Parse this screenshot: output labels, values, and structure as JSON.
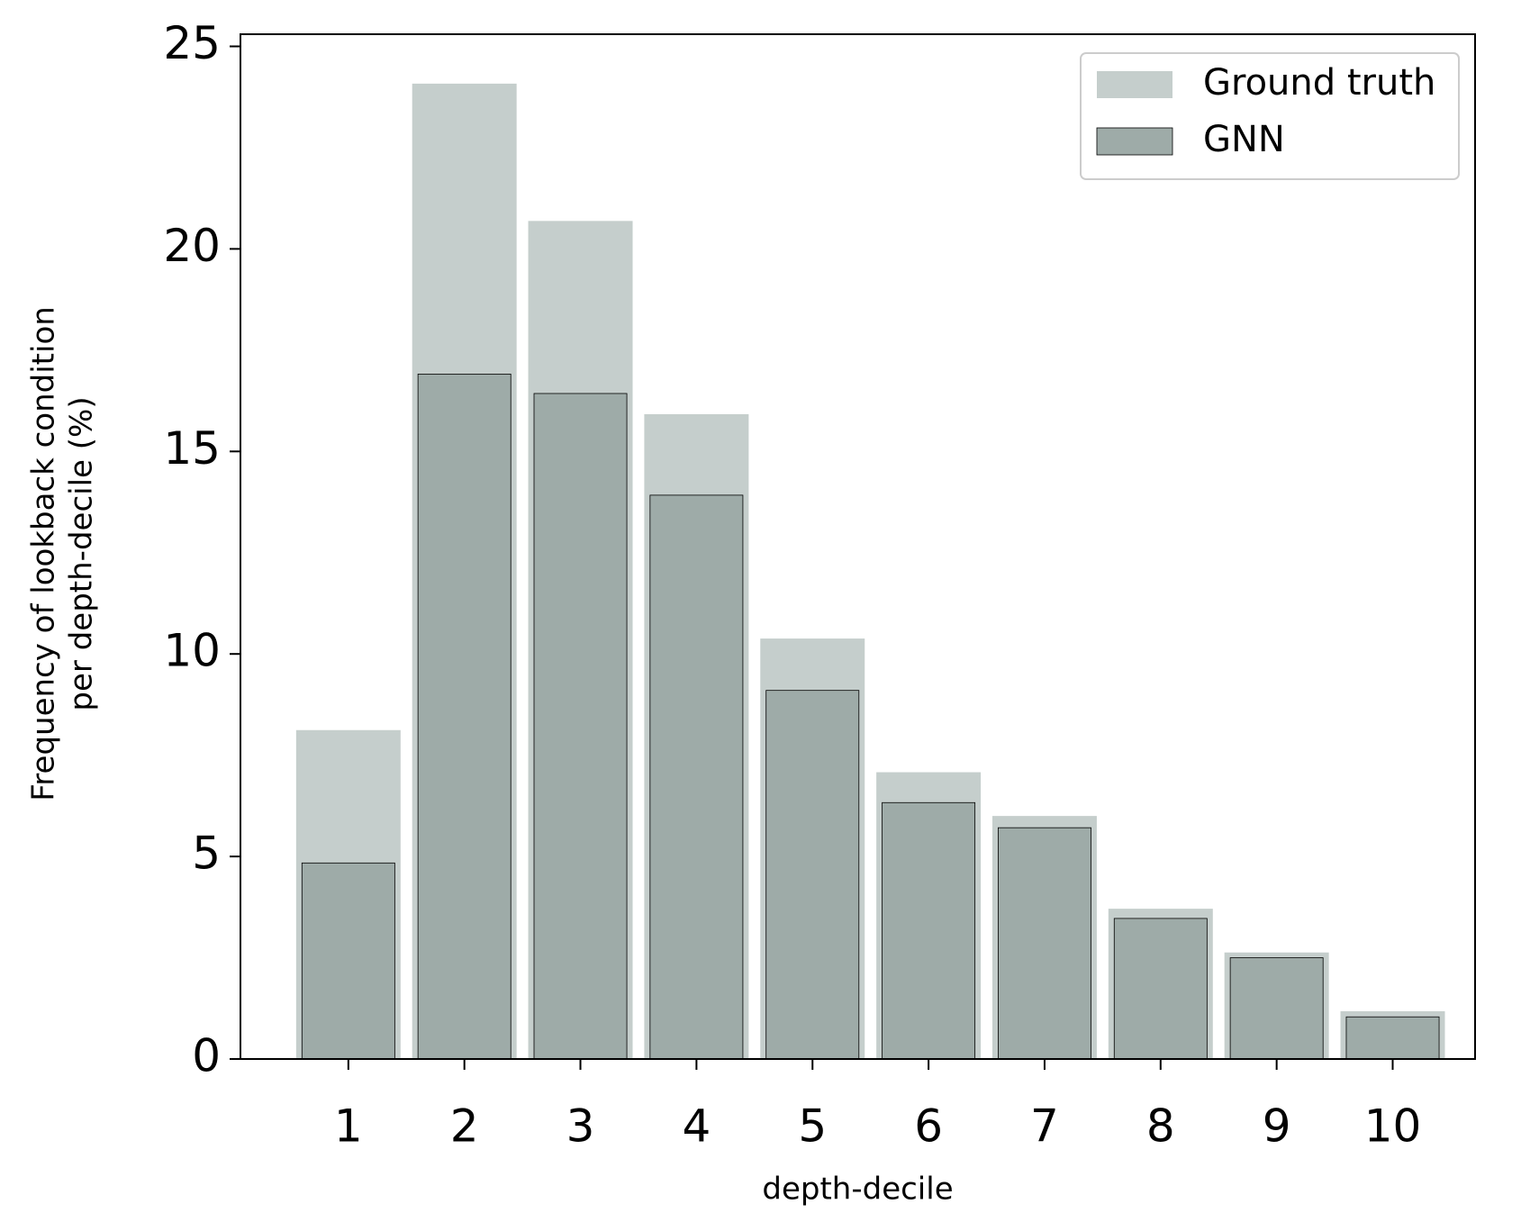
{
  "chart_data": {
    "type": "bar",
    "xlabel": "depth-decile",
    "ylabel": [
      "Frequency of lookback condition",
      "per depth-decile (%)"
    ],
    "x": [
      1,
      2,
      3,
      4,
      5,
      6,
      7,
      8,
      9,
      10
    ],
    "series": [
      {
        "name": "Ground truth",
        "color": "#c5cecc",
        "width": 0.9,
        "edge": false,
        "values": [
          8.12,
          24.08,
          20.69,
          15.92,
          10.38,
          7.08,
          6.0,
          3.71,
          2.63,
          1.18
        ]
      },
      {
        "name": "GNN",
        "color": "#9eaba8",
        "width": 0.8,
        "edge": true,
        "values": [
          4.84,
          16.91,
          16.43,
          13.92,
          9.1,
          6.33,
          5.71,
          3.47,
          2.5,
          1.04
        ]
      }
    ],
    "xlim": [
      0.07,
      10.71
    ],
    "ylim": [
      0,
      25.3
    ],
    "xticks": [
      1,
      2,
      3,
      4,
      5,
      6,
      7,
      8,
      9,
      10
    ],
    "yticks": [
      0,
      5,
      10,
      15,
      20,
      25
    ],
    "legend": "upper right"
  }
}
